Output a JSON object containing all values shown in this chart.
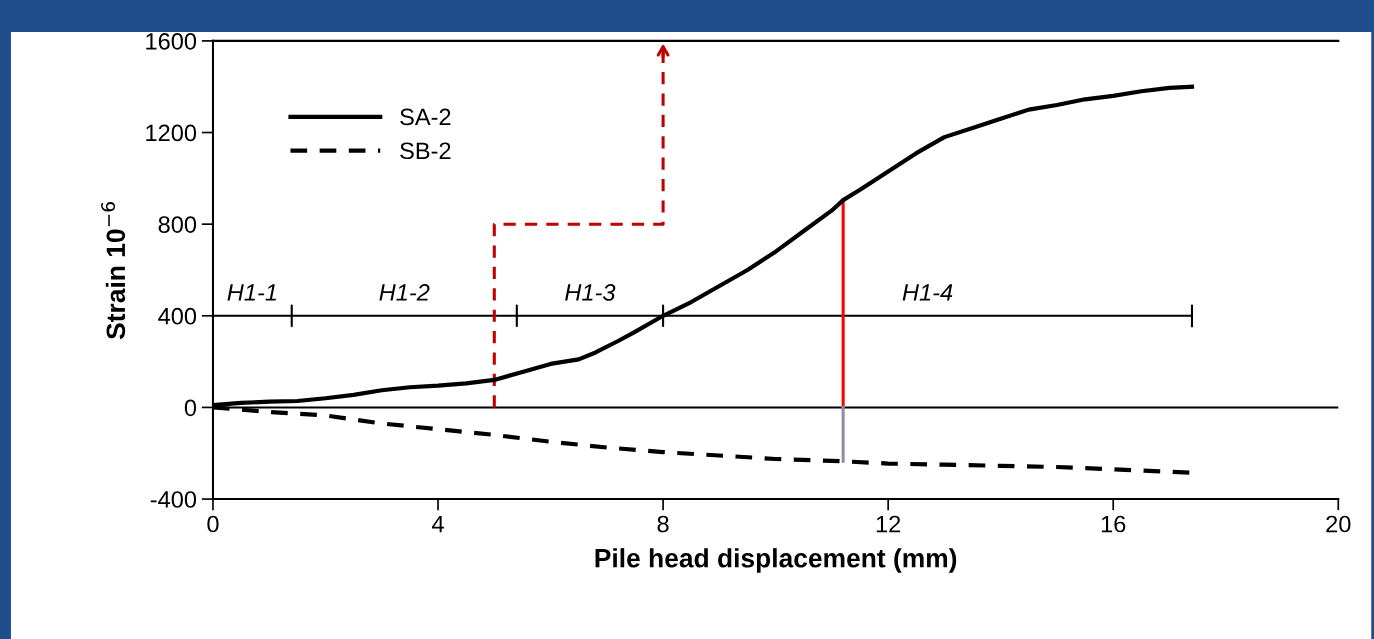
{
  "chart_data": {
    "type": "line",
    "xlabel": "Pile head displacement (mm)",
    "ylabel": "Strain 10$^{−6}$",
    "xlim": [
      0,
      20
    ],
    "ylim": [
      -400,
      1600
    ],
    "xticks": [
      0,
      4,
      8,
      12,
      16,
      20
    ],
    "yticks": [
      -400,
      0,
      400,
      800,
      1200,
      1600
    ],
    "grid": false,
    "legend": "top left",
    "series": [
      {
        "name": "SA-2",
        "color": "#000000",
        "line_style": "solid",
        "x": [
          0,
          0.5,
          1,
          1.5,
          2,
          2.5,
          3,
          3.5,
          4,
          4.5,
          5,
          5.5,
          6,
          6.5,
          6.8,
          7.2,
          7.5,
          8,
          8.5,
          9,
          9.5,
          10,
          10.5,
          11,
          11.2,
          11.5,
          12,
          12.5,
          13,
          13.5,
          14,
          14.5,
          15,
          15.5,
          16,
          16.5,
          17,
          17.4
        ],
        "values": [
          10,
          20,
          25,
          28,
          40,
          55,
          75,
          88,
          95,
          105,
          120,
          155,
          190,
          210,
          240,
          290,
          330,
          400,
          460,
          530,
          600,
          680,
          770,
          860,
          905,
          950,
          1030,
          1110,
          1180,
          1220,
          1260,
          1300,
          1320,
          1345,
          1360,
          1380,
          1395,
          1400
        ]
      },
      {
        "name": "SB-2",
        "color": "#000000",
        "line_style": "dashed",
        "x": [
          0,
          1,
          2,
          3,
          4,
          5,
          6,
          7,
          8,
          9,
          10,
          11.2,
          12,
          13,
          14,
          15,
          16,
          17.4
        ],
        "values": [
          0,
          -20,
          -35,
          -70,
          -95,
          -120,
          -150,
          -175,
          -195,
          -210,
          -225,
          -235,
          -245,
          -250,
          -255,
          -260,
          -270,
          -285
        ]
      },
      {
        "color": "#000000",
        "line_style": "solid",
        "x": [
          0,
          0,
          0,
          1.4,
          1.4,
          1.4,
          1.4,
          5.4,
          5.4,
          5.4,
          5.4,
          8,
          8,
          8,
          8,
          17.4,
          17.4,
          17.4
        ],
        "values": [
          355,
          445,
          400,
          400,
          445,
          355,
          400,
          400,
          445,
          355,
          400,
          400,
          445,
          355,
          400,
          400,
          445,
          355
        ]
      },
      {
        "color": "#c00000",
        "line_style": "dashed",
        "x": [
          5,
          5,
          8,
          8
        ],
        "values": [
          0,
          800,
          800,
          1600
        ]
      },
      {
        "color": "#ff0000",
        "line_style": "solid",
        "x": [
          11.2,
          11.2
        ],
        "values": [
          0,
          905
        ]
      },
      {
        "color": "#8c8fa8",
        "line_style": "solid",
        "x": [
          11.2,
          11.2
        ],
        "values": [
          -235,
          0
        ]
      }
    ],
    "ref_lines": [
      {
        "axis": "y",
        "value": 0,
        "color": "#000000"
      }
    ],
    "annotations": [
      "H1-1",
      "H1-2",
      "H1-3",
      "H1-4"
    ]
  }
}
